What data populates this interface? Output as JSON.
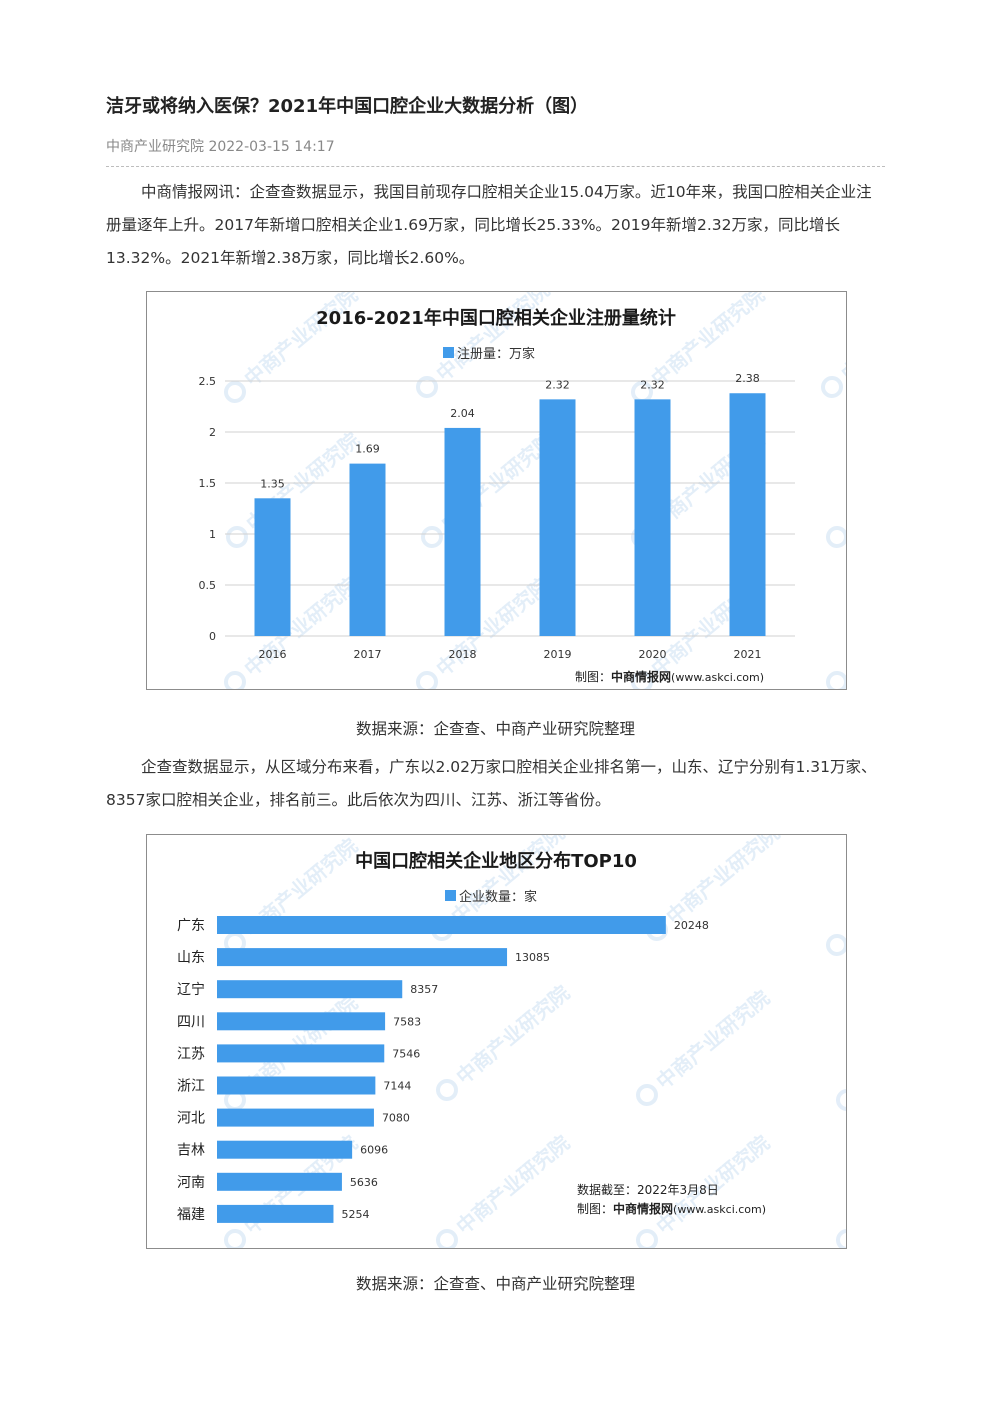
{
  "article": {
    "title": "洁牙或将纳入医保？2021年中国口腔企业大数据分析（图）",
    "meta": "中商产业研究院 2022-03-15 14:17",
    "paragraph1": "中商情报网讯：企查查数据显示，我国目前现存口腔相关企业15.04万家。近10年来，我国口腔相关企业注册量逐年上升。2017年新增口腔相关企业1.69万家，同比增长25.33%。2019年新增2.32万家，同比增长13.32%。2021年新增2.38万家，同比增长2.60%。",
    "caption1": "数据来源：企查查、中商产业研究院整理",
    "paragraph2": "企查查数据显示，从区域分布来看，广东以2.02万家口腔相关企业排名第一，山东、辽宁分别有1.31万家、8357家口腔相关企业，排名前三。此后依次为四川、江苏、浙江等省份。",
    "caption2": "数据来源：企查查、中商产业研究院整理"
  },
  "watermark": "中商产业研究院",
  "chart_data": [
    {
      "type": "bar",
      "title": "2016-2021年中国口腔相关企业注册量统计",
      "legend": "注册量：万家",
      "categories": [
        "2016",
        "2017",
        "2018",
        "2019",
        "2020",
        "2021"
      ],
      "values": [
        1.35,
        1.69,
        2.04,
        2.32,
        2.32,
        2.38
      ],
      "value_labels": [
        "1.35",
        "1.69",
        "2.04",
        "2.32",
        "2.32",
        "2.38"
      ],
      "ylim": [
        0,
        2.5
      ],
      "yticks": [
        "0",
        "0.5",
        "1",
        "1.5",
        "2",
        "2.5"
      ],
      "grid": true,
      "legend_position": "top",
      "color": "#419BEA",
      "footer_prefix": "制图：",
      "footer_brand": "中商情报网",
      "footer_url": "(www.askci.com)"
    },
    {
      "type": "bar",
      "orientation": "horizontal",
      "title": "中国口腔相关企业地区分布TOP10",
      "legend": "企业数量：家",
      "categories": [
        "广东",
        "山东",
        "辽宁",
        "四川",
        "江苏",
        "浙江",
        "河北",
        "吉林",
        "河南",
        "福建"
      ],
      "values": [
        20248,
        13085,
        8357,
        7583,
        7546,
        7144,
        7080,
        6096,
        5636,
        5254
      ],
      "xlim": [
        0,
        24000
      ],
      "grid": false,
      "legend_position": "top",
      "color": "#419BEA",
      "note_date": "数据截至：2022年3月8日",
      "footer_prefix": "制图：",
      "footer_brand": "中商情报网",
      "footer_url": "(www.askci.com)"
    }
  ]
}
